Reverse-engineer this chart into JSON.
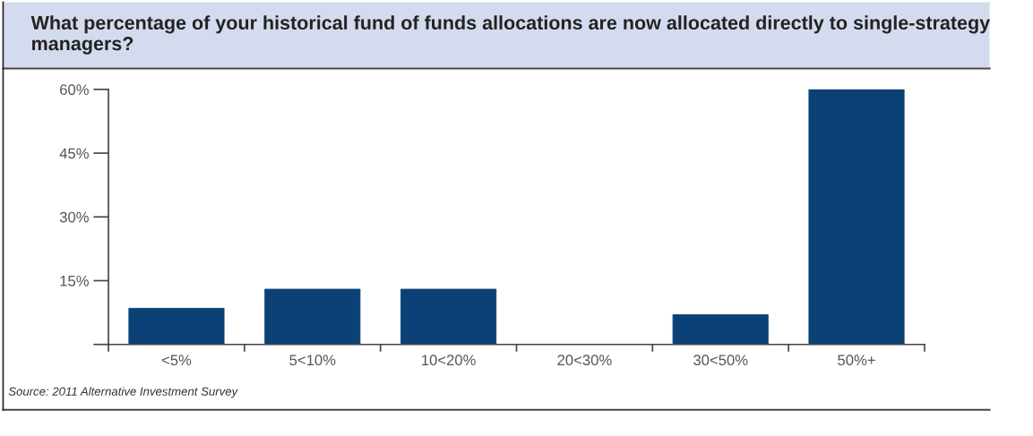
{
  "chart_data": {
    "type": "bar",
    "title": "What percentage of your historical fund of funds allocations are now allocated directly to single-strategy managers?",
    "categories": [
      "<5%",
      "5<10%",
      "10<20%",
      "20<30%",
      "30<50%",
      "50%+"
    ],
    "values": [
      8.5,
      13,
      13,
      0,
      7,
      60
    ],
    "color": "#0b4177",
    "ylim": [
      0,
      60
    ],
    "yticks": [
      {
        "value": 0,
        "label": null
      },
      {
        "value": 15,
        "label": "15%"
      },
      {
        "value": 30,
        "label": "30%"
      },
      {
        "value": 45,
        "label": "45%"
      },
      {
        "value": 60,
        "label": "60%"
      }
    ],
    "grid": false,
    "legend": false,
    "annotations": [
      "Source: 2011 Alternative Investment Survey"
    ]
  }
}
